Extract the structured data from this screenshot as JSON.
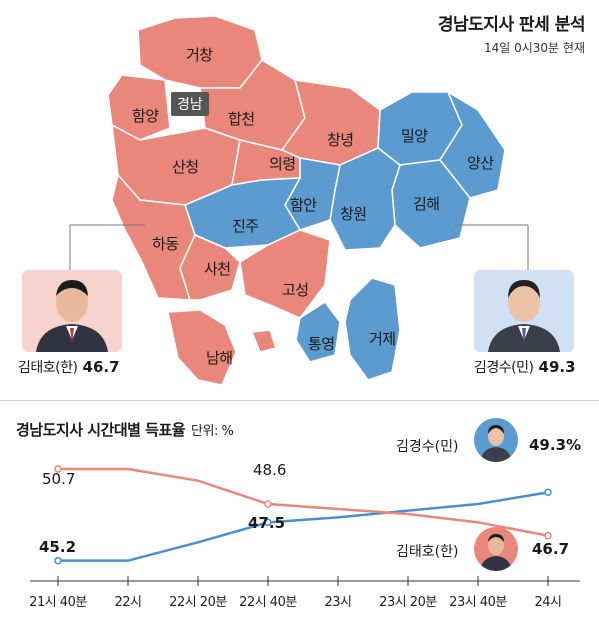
{
  "header": {
    "title": "경남도지사 판세 분석",
    "subtitle": "14일 0시30분 현재"
  },
  "colors": {
    "red": "#e8877a",
    "blue": "#5b9bd0",
    "red_line": "#e8877a",
    "blue_line": "#4a8fd0"
  },
  "map": {
    "province_badge": "경남",
    "regions": {
      "geochang": "거창",
      "hamyang": "함양",
      "hapcheon": "합천",
      "changnyeong": "창녕",
      "miryang": "밀양",
      "sancheong": "산청",
      "uiryeong": "의령",
      "yangsan": "양산",
      "haman": "함안",
      "changwon": "창원",
      "gimhae": "김해",
      "jinju": "진주",
      "hadong": "하동",
      "sacheon": "사천",
      "goseong": "고성",
      "geoje": "거제",
      "tongyeong": "통영",
      "namhae": "남해"
    }
  },
  "candidates": {
    "left": {
      "name": "김태호(한)",
      "pct": "46.7",
      "photo_icon": "portrait-icon"
    },
    "right": {
      "name": "김경수(민)",
      "pct": "49.3",
      "photo_icon": "portrait-icon"
    }
  },
  "chart_title": "경남도지사 시간대별 득표율",
  "chart_unit": "단위: %",
  "legend": {
    "blue_name": "김경수(민)",
    "blue_final": "49.3%",
    "red_name": "김태호(한)",
    "red_final": "46.7"
  },
  "chart_data": {
    "type": "line",
    "categories": [
      "21시 40분",
      "22시",
      "22시 20분",
      "22시 40분",
      "23시",
      "23시 20분",
      "23시 40분",
      "24시"
    ],
    "series": [
      {
        "name": "김경수(민)",
        "values": [
          45.2,
          45.2,
          46.3,
          47.5,
          47.8,
          48.2,
          48.6,
          49.3
        ]
      },
      {
        "name": "김태호(한)",
        "values": [
          50.7,
          50.7,
          50.0,
          48.6,
          48.3,
          48.0,
          47.5,
          46.7
        ]
      }
    ],
    "data_labels": {
      "blue_first": "45.2",
      "red_first": "50.7",
      "blue_mid": "47.5",
      "red_mid": "48.6"
    }
  }
}
